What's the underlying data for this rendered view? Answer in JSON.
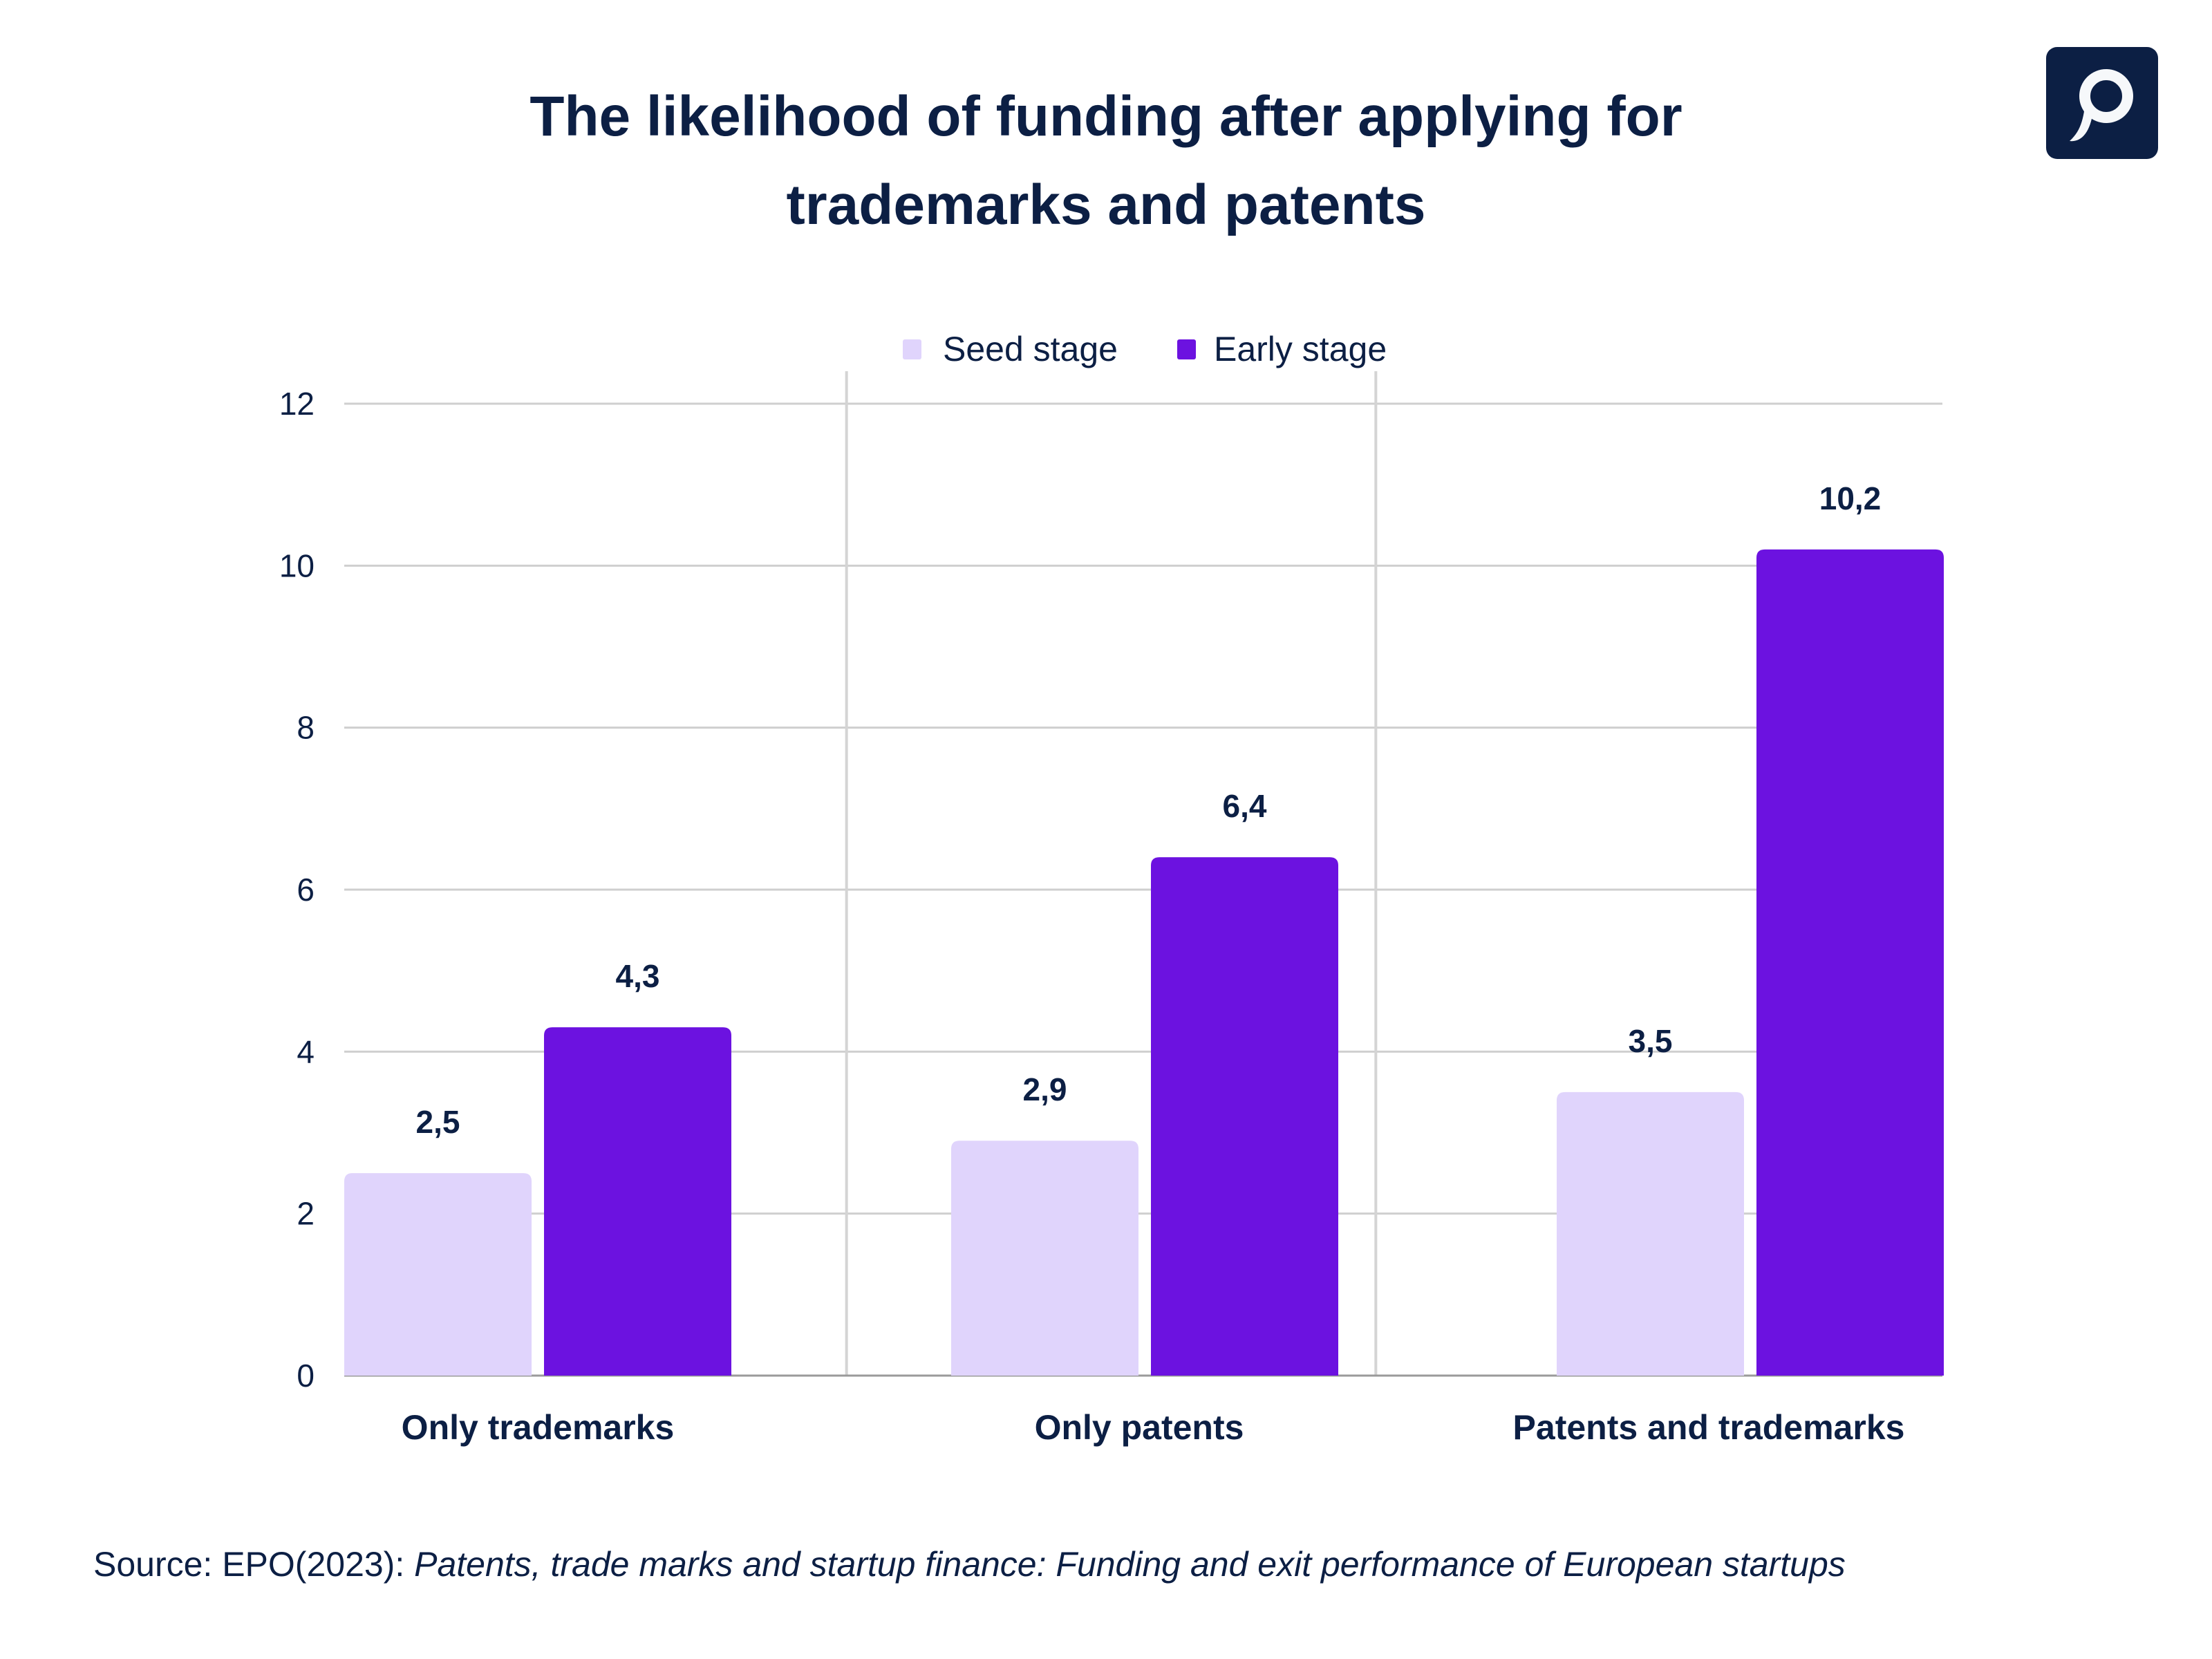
{
  "title_line1": "The likelihood of funding after applying for",
  "title_line2": "trademarks and patents",
  "logo": {
    "icon": "p-logo-icon",
    "color": "#0c1f44"
  },
  "source_prefix": "Source: EPO(2023): ",
  "source_title": "Patents, trade marks and startup finance: Funding and exit performance of European startups",
  "chart_data": {
    "type": "bar",
    "categories": [
      "Only trademarks",
      "Only patents",
      "Patents and trademarks"
    ],
    "series": [
      {
        "name": "Seed stage",
        "values": [
          2.5,
          2.9,
          3.5
        ],
        "labels": [
          "2,5",
          "2,9",
          "3,5"
        ],
        "color": "#e0d4fc"
      },
      {
        "name": "Early stage",
        "values": [
          4.3,
          6.4,
          10.2
        ],
        "labels": [
          "4,3",
          "6,4",
          "10,2"
        ],
        "color": "#6c12e0"
      }
    ],
    "yticks": [
      "0",
      "2",
      "4",
      "6",
      "8",
      "10",
      "12"
    ],
    "ylim": [
      0,
      12
    ],
    "grid": true,
    "legend": "top-center",
    "xlabel": "",
    "ylabel": ""
  }
}
